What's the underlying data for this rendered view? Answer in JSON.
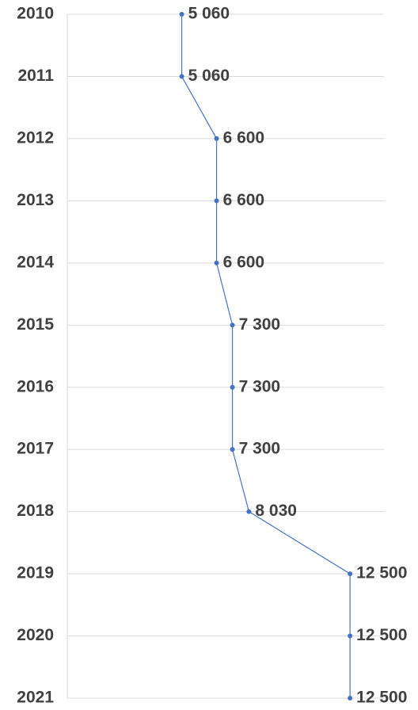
{
  "chart_data": {
    "type": "line",
    "categories": [
      "2010",
      "2011",
      "2012",
      "2013",
      "2014",
      "2015",
      "2016",
      "2017",
      "2018",
      "2019",
      "2020",
      "2021"
    ],
    "series": [
      {
        "color": "#4472c4",
        "values": [
          5060,
          5060,
          6600,
          6600,
          6600,
          7300,
          7300,
          7300,
          8030,
          12500,
          12500,
          12500
        ],
        "value_labels": [
          "5 060",
          "5 060",
          "6 600",
          "6 600",
          "6 600",
          "7 300",
          "7 300",
          "7 300",
          "8 030",
          "12 500",
          "12 500",
          "12 500"
        ]
      }
    ],
    "xlim": [
      0,
      14000
    ],
    "grid": true
  }
}
